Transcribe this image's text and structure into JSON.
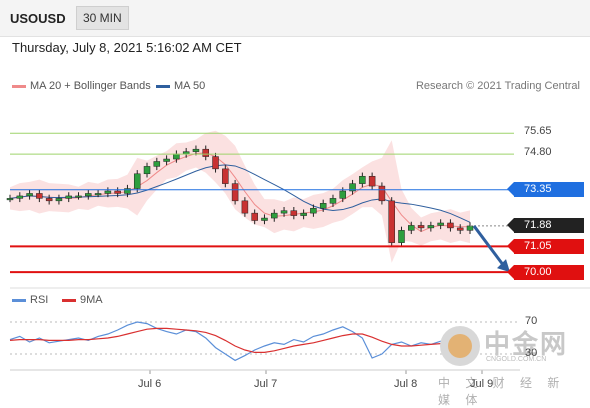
{
  "header": {
    "symbol": "USOUSD",
    "timeframe": "30 MIN"
  },
  "datetime": "Thursday, July 8, 2021 5:16:02 AM CET",
  "legend": {
    "ma20": {
      "label": "MA 20 + Bollinger Bands",
      "color": "#ef8a8a"
    },
    "ma50": {
      "label": "MA 50",
      "color": "#2f5f9e"
    }
  },
  "copyright": "Research © 2021 Trading Central",
  "rsi_legend": {
    "rsi": {
      "label": "RSI",
      "color": "#5b8fd8"
    },
    "ma9": {
      "label": "9MA",
      "color": "#d93030"
    }
  },
  "watermark": {
    "name": "中金网",
    "url": "CNGOLD.COM.CN",
    "tagline": "中 文 财 经 新 媒 体"
  },
  "chart_data": {
    "type": "candlestick",
    "x_ticks": [
      "Jul 6",
      "Jul 7",
      "Jul 8",
      "Jul 9"
    ],
    "ylim": [
      69.6,
      77.0
    ],
    "price": [
      73.0,
      73.1,
      73.2,
      73.0,
      72.9,
      73.0,
      73.1,
      73.1,
      73.2,
      73.2,
      73.3,
      73.2,
      73.4,
      74.0,
      74.3,
      74.5,
      74.6,
      74.8,
      74.9,
      75.0,
      74.7,
      74.2,
      73.6,
      72.9,
      72.4,
      72.1,
      72.2,
      72.4,
      72.5,
      72.3,
      72.4,
      72.6,
      72.8,
      73.0,
      73.3,
      73.6,
      73.9,
      73.5,
      72.9,
      71.2,
      71.7,
      71.9,
      71.8,
      71.9,
      72.0,
      71.8,
      71.7,
      71.88
    ],
    "levels": [
      {
        "value": "75.65",
        "color": "#9dd36a",
        "kind": "resistance"
      },
      {
        "value": "74.80",
        "color": "#9dd36a",
        "kind": "resistance"
      },
      {
        "value": "73.35",
        "color": "#1f6fe0",
        "kind": "pivot"
      },
      {
        "value": "71.88",
        "color": "#222222",
        "kind": "last"
      },
      {
        "value": "71.05",
        "color": "#e01010",
        "kind": "support"
      },
      {
        "value": "70.00",
        "color": "#e01010",
        "kind": "support"
      }
    ],
    "forecast": {
      "from": 71.88,
      "to": 70.0,
      "direction": "down",
      "color": "#2f5f9e"
    },
    "rsi": {
      "levels": [
        "70",
        "30"
      ],
      "ylim": [
        10,
        90
      ],
      "rsi_values": [
        48,
        52,
        45,
        50,
        44,
        46,
        48,
        50,
        47,
        52,
        55,
        60,
        66,
        70,
        68,
        62,
        58,
        55,
        60,
        58,
        50,
        38,
        30,
        22,
        28,
        35,
        40,
        44,
        42,
        48,
        45,
        52,
        55,
        60,
        64,
        58,
        50,
        25,
        30,
        42,
        45,
        40,
        44,
        42,
        46,
        44,
        40,
        42
      ],
      "ma9_values": [
        47,
        48,
        48,
        48,
        47,
        47,
        47,
        48,
        48,
        49,
        50,
        52,
        55,
        58,
        61,
        62,
        62,
        61,
        60,
        59,
        57,
        53,
        47,
        40,
        35,
        32,
        32,
        34,
        37,
        40,
        42,
        44,
        47,
        50,
        53,
        55,
        55,
        51,
        46,
        42,
        40,
        40,
        41,
        42,
        43,
        43,
        43,
        43
      ]
    }
  }
}
